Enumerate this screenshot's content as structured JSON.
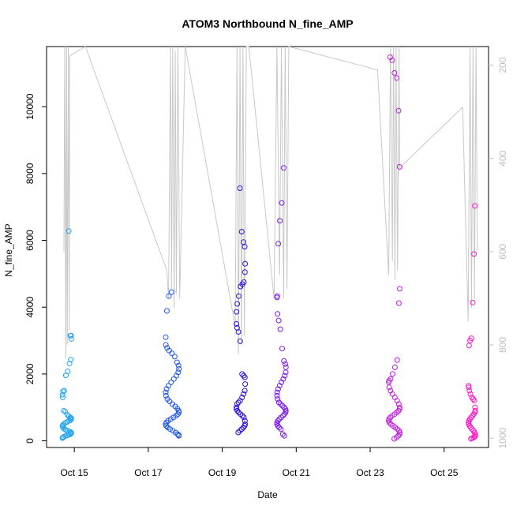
{
  "chart_data": {
    "type": "scatter",
    "title": "ATOM3 Northbound N_fine_AMP",
    "xlabel": "Date",
    "ylabel": "N_fine_AMP",
    "x_ticks": [
      "Oct 15",
      "Oct 17",
      "Oct 19",
      "Oct 21",
      "Oct 23",
      "Oct 25"
    ],
    "x_tick_days": [
      15,
      17,
      19,
      21,
      23,
      25
    ],
    "xlim_days": [
      14.25,
      26.2
    ],
    "ylim": [
      -200,
      11800
    ],
    "y_ticks": [
      0,
      2000,
      4000,
      6000,
      8000,
      10000
    ],
    "y2_ticks": [
      200,
      400,
      600,
      800,
      1000
    ],
    "y2lim": [
      1020,
      160
    ],
    "y2_reversed": true,
    "grid": false,
    "color_scale": [
      "#2fb6f0",
      "#1f3fe6",
      "#3010e0",
      "#8a1ee8",
      "#e61ed8",
      "#ff1ec8"
    ],
    "line_color": "#c8c8c8",
    "point_clusters": [
      {
        "day_center": 14.8,
        "day_spread": 0.12,
        "color": "#27a3ee",
        "values": [
          6280,
          3150,
          3150,
          3050,
          2430,
          2310,
          2080,
          1960,
          1500,
          1480,
          1380,
          1300,
          900,
          870,
          780,
          730,
          700,
          680,
          650,
          620,
          600,
          570,
          540,
          500,
          470,
          440,
          400,
          360,
          330,
          300,
          280,
          260,
          240,
          220,
          200,
          180,
          160,
          140,
          120,
          100,
          80
        ]
      },
      {
        "day_center": 17.65,
        "day_spread": 0.18,
        "color": "#1d55e8",
        "values": [
          4450,
          4330,
          3890,
          3100,
          2870,
          2780,
          2700,
          2620,
          2520,
          2350,
          2250,
          2150,
          2050,
          1950,
          1850,
          1750,
          1650,
          1550,
          1450,
          1350,
          1250,
          1180,
          1100,
          1030,
          960,
          900,
          850,
          800,
          750,
          700,
          650,
          600,
          550,
          500,
          450,
          400,
          350,
          300,
          250,
          200,
          170,
          150
        ]
      },
      {
        "day_center": 19.5,
        "day_spread": 0.12,
        "color": "#2a10e2",
        "values": [
          7560,
          6260,
          5950,
          5810,
          5300,
          5050,
          4750,
          4690,
          4620,
          4330,
          4100,
          3860,
          3500,
          3380,
          3260,
          2980,
          2000,
          1950,
          1900,
          1700,
          1500,
          1400,
          1300,
          1200,
          1150,
          1100,
          1000,
          950,
          900,
          850,
          800,
          750,
          700,
          600,
          500,
          450,
          400,
          350,
          300,
          250
        ]
      },
      {
        "day_center": 20.6,
        "day_spread": 0.12,
        "color": "#7a1ce8",
        "values": [
          8170,
          7120,
          6590,
          5900,
          4330,
          4290,
          3800,
          3600,
          3340,
          2760,
          2390,
          2300,
          2200,
          2050,
          1950,
          1850,
          1750,
          1650,
          1550,
          1450,
          1350,
          1250,
          1150,
          1100,
          1050,
          1000,
          950,
          900,
          850,
          800,
          750,
          700,
          650,
          600,
          550,
          500,
          450,
          400,
          350,
          200,
          150
        ]
      },
      {
        "day_center": 23.65,
        "day_spread": 0.15,
        "color": "#c11ee0",
        "values": [
          11480,
          11390,
          11010,
          10860,
          9880,
          8200,
          4550,
          4120,
          2420,
          2200,
          2000,
          1850,
          1800,
          1750,
          1600,
          1500,
          1400,
          1300,
          1200,
          1100,
          1000,
          950,
          900,
          850,
          800,
          750,
          700,
          650,
          600,
          550,
          500,
          450,
          400,
          350,
          300,
          250,
          200,
          150,
          100,
          60
        ]
      },
      {
        "day_center": 25.75,
        "day_spread": 0.09,
        "color": "#ff18c8",
        "values": [
          7030,
          5590,
          4140,
          3070,
          3000,
          2850,
          1650,
          1600,
          1500,
          1400,
          1300,
          1250,
          1200,
          1000,
          900,
          850,
          800,
          750,
          700,
          650,
          600,
          550,
          500,
          450,
          400,
          350,
          300,
          250,
          200,
          150,
          120,
          100,
          80,
          60
        ]
      }
    ],
    "secondary_line_days": [
      14.72,
      14.74,
      14.77,
      14.79,
      14.81,
      14.84,
      14.86,
      14.88,
      15.3,
      17.5,
      17.55,
      17.6,
      17.63,
      17.66,
      17.7,
      17.73,
      17.76,
      17.8,
      17.85,
      18.0,
      19.35,
      19.4,
      19.44,
      19.48,
      19.52,
      19.56,
      19.6,
      19.65,
      19.72,
      20.4,
      20.48,
      20.55,
      20.6,
      20.66,
      20.7,
      20.75,
      20.8,
      23.2,
      23.5,
      23.55,
      23.6,
      23.63,
      23.67,
      23.7,
      23.74,
      23.78,
      23.8,
      25.5,
      25.65,
      25.7,
      25.74,
      25.78,
      25.82,
      25.86,
      25.9
    ],
    "secondary_line_values": [
      600,
      150,
      830,
      150,
      800,
      150,
      770,
      180,
      150,
      640,
      700,
      160,
      680,
      150,
      720,
      170,
      690,
      150,
      700,
      160,
      760,
      150,
      820,
      160,
      800,
      150,
      780,
      160,
      150,
      700,
      150,
      650,
      160,
      700,
      150,
      680,
      160,
      210,
      650,
      150,
      620,
      160,
      660,
      150,
      640,
      160,
      420,
      290,
      750,
      150,
      720,
      160,
      700,
      150,
      600
    ]
  }
}
